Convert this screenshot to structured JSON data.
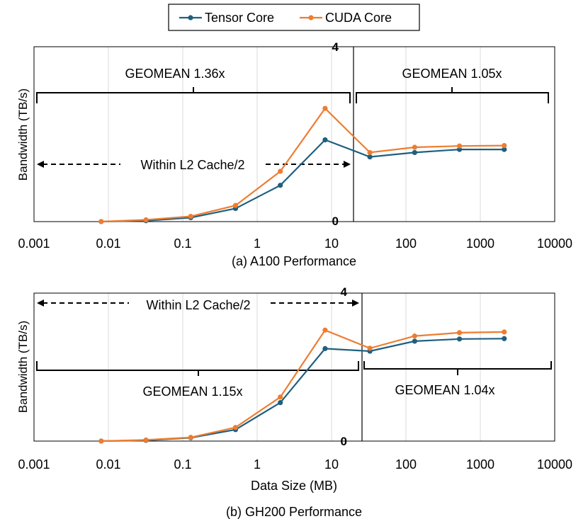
{
  "legend": {
    "entries": [
      {
        "name": "Tensor Core",
        "color": "#1F5F7F"
      },
      {
        "name": "CUDA Core",
        "color": "#ED7D31"
      }
    ]
  },
  "shared": {
    "xlabel": "Data Size (MB)",
    "x_ticks": [
      "0.001",
      "0.01",
      "0.1",
      "1",
      "10",
      "100",
      "1000",
      "10000"
    ],
    "x_tick_values": [
      0.001,
      0.01,
      0.1,
      1,
      10,
      100,
      1000,
      10000
    ],
    "ylabel": "Bandwidth (TB/s)",
    "y_ticks": [
      "0",
      "4"
    ]
  },
  "chart_data": [
    {
      "type": "line",
      "title": "(a) A100 Performance",
      "xlabel": "",
      "ylabel": "Bandwidth (TB/s)",
      "xscale": "log",
      "xlim": [
        0.001,
        10000
      ],
      "ylim": [
        0,
        4
      ],
      "x": [
        0.008,
        0.032,
        0.128,
        0.512,
        2.048,
        8.192,
        32.768,
        131.072,
        524.288,
        2097.152
      ],
      "series": [
        {
          "name": "Tensor Core",
          "values": [
            0.0,
            0.02,
            0.09,
            0.3,
            0.83,
            1.87,
            1.48,
            1.58,
            1.65,
            1.65
          ]
        },
        {
          "name": "CUDA Core",
          "values": [
            0.0,
            0.04,
            0.12,
            0.37,
            1.15,
            2.59,
            1.58,
            1.7,
            1.73,
            1.74
          ]
        }
      ],
      "divider_x": 20,
      "annotations": [
        {
          "text": "GEOMEAN 1.36x",
          "region": "left"
        },
        {
          "text": "GEOMEAN 1.05x",
          "region": "right"
        },
        {
          "text": "Within L2 Cache/2",
          "region": "left-arrow"
        }
      ]
    },
    {
      "type": "line",
      "title": "(b) GH200 Performance",
      "xlabel": "Data Size (MB)",
      "ylabel": "Bandwidth (TB/s)",
      "xscale": "log",
      "xlim": [
        0.001,
        10000
      ],
      "ylim": [
        0,
        4
      ],
      "x": [
        0.008,
        0.032,
        0.128,
        0.512,
        2.048,
        8.192,
        32.768,
        131.072,
        524.288,
        2097.152
      ],
      "series": [
        {
          "name": "Tensor Core",
          "values": [
            0.0,
            0.02,
            0.09,
            0.31,
            1.04,
            2.5,
            2.43,
            2.7,
            2.76,
            2.77
          ]
        },
        {
          "name": "CUDA Core",
          "values": [
            0.0,
            0.03,
            0.1,
            0.37,
            1.19,
            3.0,
            2.51,
            2.84,
            2.93,
            2.95
          ]
        }
      ],
      "divider_x": 25,
      "annotations": [
        {
          "text": "Within L2 Cache/2",
          "region": "left-arrow"
        },
        {
          "text": "GEOMEAN 1.15x",
          "region": "left"
        },
        {
          "text": "GEOMEAN 1.04x",
          "region": "right"
        }
      ]
    }
  ]
}
